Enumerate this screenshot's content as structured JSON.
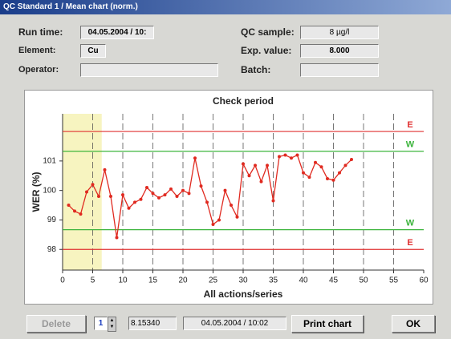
{
  "window": {
    "title": "QC Standard 1 / Mean chart (norm.)"
  },
  "fields": {
    "run_time": {
      "label": "Run time:",
      "value": "04.05.2004 / 10:"
    },
    "element": {
      "label": "Element:",
      "value": "Cu"
    },
    "operator": {
      "label": "Operator:"
    },
    "qc_sample": {
      "label": "QC sample:",
      "value": "8 µg/l"
    },
    "exp_value": {
      "label": "Exp. value:",
      "value": "8.000"
    },
    "batch": {
      "label": "Batch:"
    }
  },
  "footer": {
    "delete": "Delete",
    "spinner": "1",
    "reading": "8.15340",
    "timestamp": "04.05.2004 / 10:02",
    "print": "Print chart",
    "ok": "OK"
  },
  "chart_data": {
    "type": "line",
    "title": "Check period",
    "x_label": "All actions/series",
    "y_label": "WER (%)",
    "x": [
      1,
      2,
      3,
      4,
      5,
      6,
      7,
      8,
      9,
      10,
      11,
      12,
      13,
      14,
      15,
      16,
      17,
      18,
      19,
      20,
      21,
      22,
      23,
      24,
      25,
      26,
      27,
      28,
      29,
      30,
      31,
      32,
      33,
      34,
      35,
      36,
      37,
      38,
      39,
      40,
      41,
      42,
      43,
      44,
      45,
      46,
      47,
      48
    ],
    "series": [
      {
        "name": "WER",
        "color": "#e02a20",
        "values": [
          99.5,
          99.3,
          99.2,
          99.95,
          100.2,
          99.8,
          100.7,
          99.8,
          98.4,
          99.85,
          99.4,
          99.6,
          99.7,
          100.1,
          99.9,
          99.75,
          99.85,
          100.05,
          99.8,
          100.0,
          99.9,
          101.1,
          100.15,
          99.6,
          98.85,
          99.0,
          100.0,
          99.5,
          99.1,
          100.9,
          100.5,
          100.85,
          100.3,
          100.85,
          99.65,
          101.15,
          101.2,
          101.1,
          101.2,
          100.6,
          100.45,
          100.95,
          100.8,
          100.4,
          100.35,
          100.6,
          100.85,
          101.05
        ]
      }
    ],
    "limits": [
      {
        "label": "E",
        "value": 102,
        "color": "#e03030"
      },
      {
        "label": "W",
        "value": 101.33,
        "color": "#3cb43c"
      },
      {
        "label": "W",
        "value": 98.67,
        "color": "#3cb43c"
      },
      {
        "label": "E",
        "value": 98,
        "color": "#e03030"
      }
    ],
    "shaded_xlim": [
      0,
      6.5
    ],
    "shade_color": "#f7f4c0",
    "xlim": [
      0,
      60
    ],
    "xticks": [
      0,
      5,
      10,
      15,
      20,
      25,
      30,
      35,
      40,
      45,
      50,
      55,
      60
    ],
    "ylim": [
      97.3,
      102.6
    ],
    "yticks": [
      98,
      99,
      100,
      101
    ],
    "grid": true
  }
}
